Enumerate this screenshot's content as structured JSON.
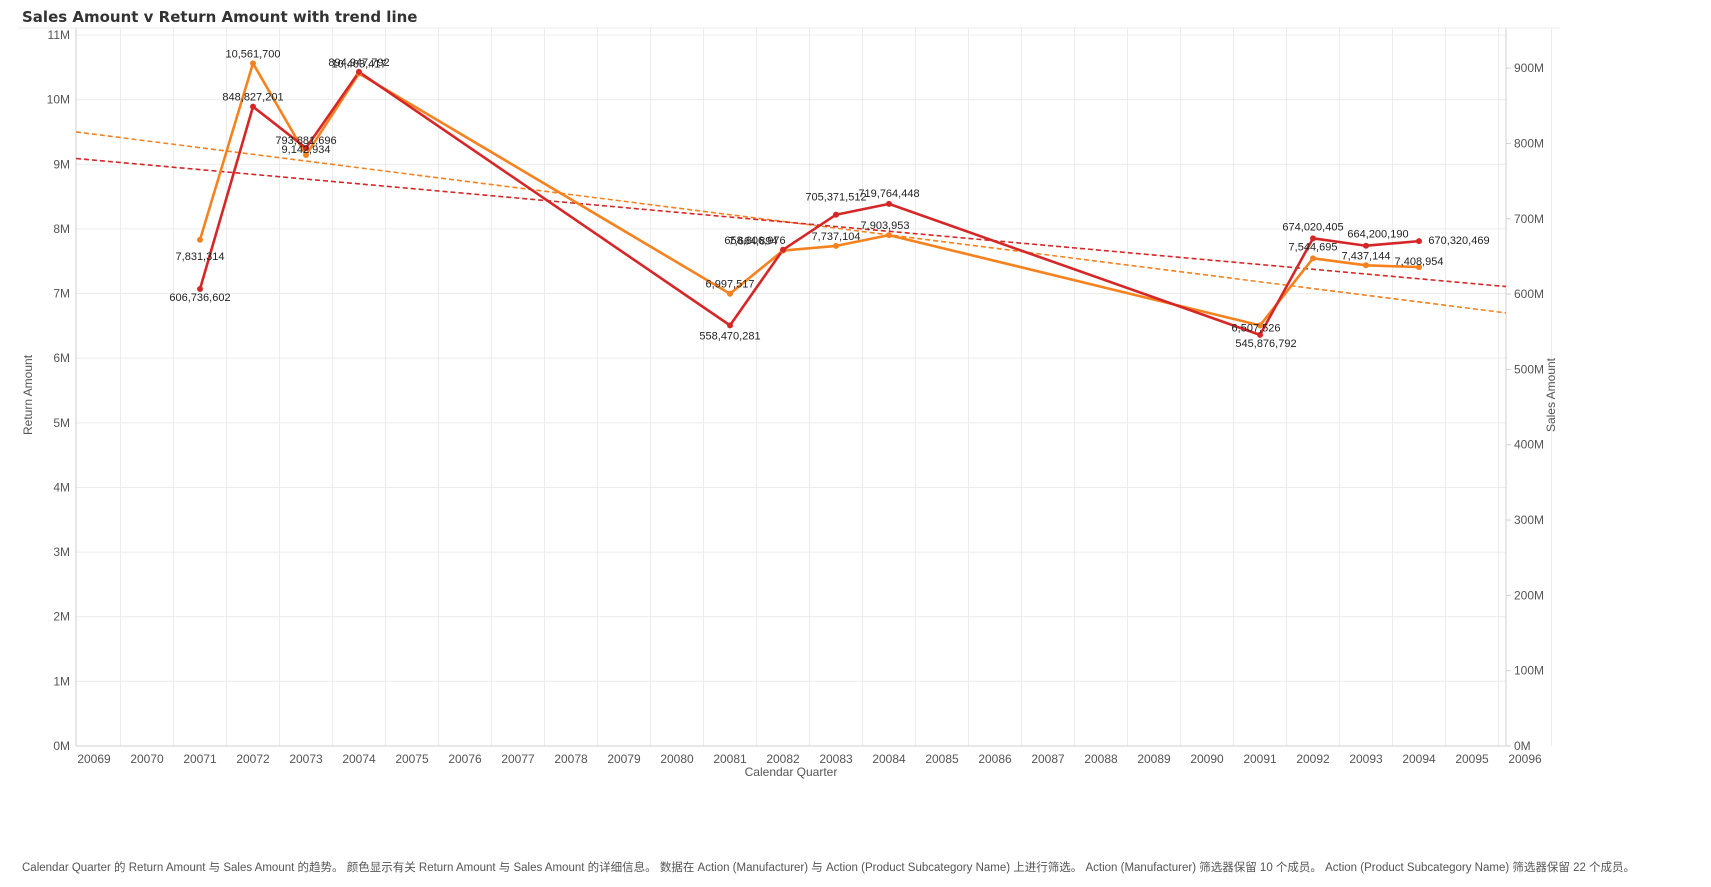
{
  "title": "Sales Amount v Return Amount with trend line",
  "caption": "Calendar Quarter 的 Return Amount 与 Sales Amount 的趋势。 颜色显示有关 Return Amount 与 Sales Amount 的详细信息。 数据在 Action (Manufacturer) 与 Action (Product Subcategory Name) 上进行筛选。 Action (Manufacturer) 筛选器保留 10 个成员。 Action (Product Subcategory Name) 筛选器保留 22 个成员。",
  "colors": {
    "return": "#f5821f",
    "sales": "#d62728",
    "grid": "#ececec",
    "axis": "#d0d0d0",
    "label": "#555555"
  },
  "chart_data": {
    "type": "line",
    "xlabel": "Calendar Quarter",
    "ylabel_left": "Return Amount",
    "ylabel_right": "Sales Amount",
    "x_ticks": [
      "20069",
      "20070",
      "20071",
      "20072",
      "20073",
      "20074",
      "20075",
      "20076",
      "20077",
      "20078",
      "20079",
      "20080",
      "20081",
      "20082",
      "20083",
      "20084",
      "20085",
      "20086",
      "20087",
      "20088",
      "20089",
      "20090",
      "20091",
      "20092",
      "20093",
      "20094",
      "20095",
      "20096"
    ],
    "y_left": {
      "min": 0,
      "max": 11000000,
      "ticks": [
        "0M",
        "1M",
        "2M",
        "3M",
        "4M",
        "5M",
        "6M",
        "7M",
        "8M",
        "9M",
        "10M",
        "11M"
      ]
    },
    "y_right": {
      "min": 0,
      "max": 940000000,
      "ticks": [
        "0M",
        "100M",
        "200M",
        "300M",
        "400M",
        "500M",
        "600M",
        "700M",
        "800M",
        "900M"
      ]
    },
    "series": [
      {
        "name": "Return Amount",
        "axis": "left",
        "color": "#f5821f",
        "points": [
          {
            "x": "20071",
            "y": 7831314,
            "label": "7,831,314"
          },
          {
            "x": "20072",
            "y": 10561700,
            "label": "10,561,700"
          },
          {
            "x": "20073",
            "y": 9142934,
            "label": "9,142,934"
          },
          {
            "x": "20074",
            "y": 10403417,
            "label": "10,403,417"
          },
          {
            "x": "20081",
            "y": 6997517,
            "label": "6,997,517"
          },
          {
            "x": "20082",
            "y": 7664894,
            "label": "7,664,894"
          },
          {
            "x": "20083",
            "y": 7737104,
            "label": "7,737,104"
          },
          {
            "x": "20084",
            "y": 7903953,
            "label": "7,903,953"
          },
          {
            "x": "20091",
            "y": 6507526,
            "label": "6,507,526"
          },
          {
            "x": "20092",
            "y": 7544695,
            "label": "7,544,695"
          },
          {
            "x": "20093",
            "y": 7437144,
            "label": "7,437,144"
          },
          {
            "x": "20094",
            "y": 7408954,
            "label": "7,408,954"
          }
        ],
        "trend": {
          "start": 9500000,
          "end": 6700000
        }
      },
      {
        "name": "Sales Amount",
        "axis": "right",
        "color": "#d62728",
        "points": [
          {
            "x": "20071",
            "y": 606736602,
            "label": "606,736,602"
          },
          {
            "x": "20072",
            "y": 848827201,
            "label": "848,827,201"
          },
          {
            "x": "20073",
            "y": 793881696,
            "label": "793,881,696"
          },
          {
            "x": "20074",
            "y": 894947792,
            "label": "894,947,792"
          },
          {
            "x": "20081",
            "y": 558470281,
            "label": "558,470,281"
          },
          {
            "x": "20082",
            "y": 658806976,
            "label": "658,806,976"
          },
          {
            "x": "20083",
            "y": 705371512,
            "label": "705,371,512"
          },
          {
            "x": "20084",
            "y": 719764448,
            "label": "719,764,448"
          },
          {
            "x": "20091",
            "y": 545876792,
            "label": "545,876,792"
          },
          {
            "x": "20092",
            "y": 674020405,
            "label": "674,020,405"
          },
          {
            "x": "20093",
            "y": 664200190,
            "label": "664,200,190"
          },
          {
            "x": "20094",
            "y": 670320469,
            "label": "670,320,469"
          }
        ],
        "trend": {
          "start": 780000000,
          "end": 610000000
        }
      }
    ]
  }
}
